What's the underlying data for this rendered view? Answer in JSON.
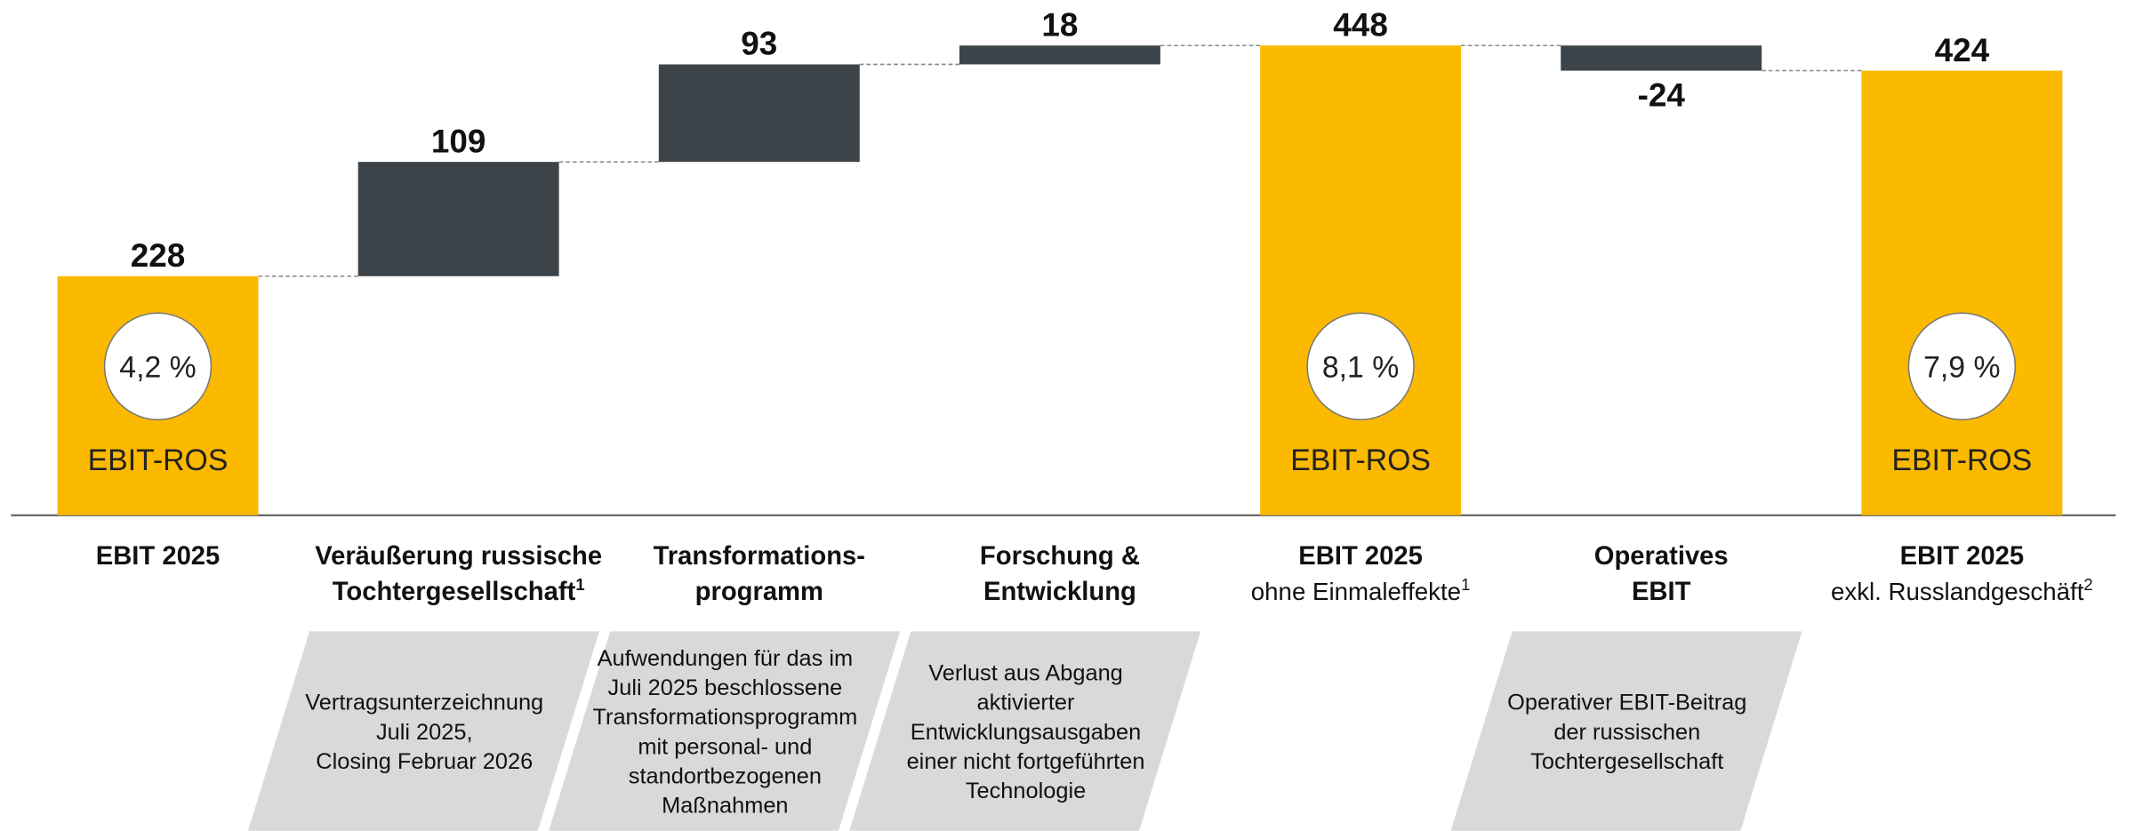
{
  "chart_data": {
    "type": "waterfall",
    "categories": [
      [
        "EBIT 2025"
      ],
      [
        "Veräußerung russische",
        "Tochtergesellschaft"
      ],
      [
        "Transformations-",
        "programm"
      ],
      [
        "Forschung &",
        "Entwicklung"
      ],
      [
        "EBIT 2025"
      ],
      [
        "Operatives",
        "EBIT"
      ],
      [
        "EBIT 2025"
      ]
    ],
    "category_sublabels": [
      null,
      null,
      null,
      null,
      "ohne Einmaleffekte",
      null,
      "exkl. Russlandgeschäft"
    ],
    "footnotes": [
      null,
      "1",
      null,
      null,
      "1",
      null,
      "2"
    ],
    "kinds": [
      "total",
      "delta",
      "delta",
      "delta",
      "total",
      "delta",
      "total"
    ],
    "values": [
      228,
      109,
      93,
      18,
      448,
      -24,
      424
    ],
    "total_color": "#fbb900",
    "delta_color": "#3d4449",
    "ros_labels": [
      "4,2 %",
      null,
      null,
      null,
      "8,1 %",
      null,
      "7,9 %"
    ],
    "ros_caption": "EBIT-ROS",
    "notes": [
      null,
      [
        "Vertragsunterzeichnung",
        "Juli 2025,",
        "Closing Februar 2026"
      ],
      [
        "Aufwendungen für das im",
        "Juli 2025 beschlossene",
        "Transformationsprogramm",
        "mit personal- und",
        "standortbezogenen",
        "Maßnahmen"
      ],
      [
        "Verlust aus Abgang",
        "aktivierter",
        "Entwicklungsausgaben",
        "einer nicht fortgeführten",
        "Technologie"
      ],
      null,
      [
        "Operativer EBIT-Beitrag",
        "der russischen",
        "Tochtergesellschaft"
      ],
      null
    ]
  }
}
